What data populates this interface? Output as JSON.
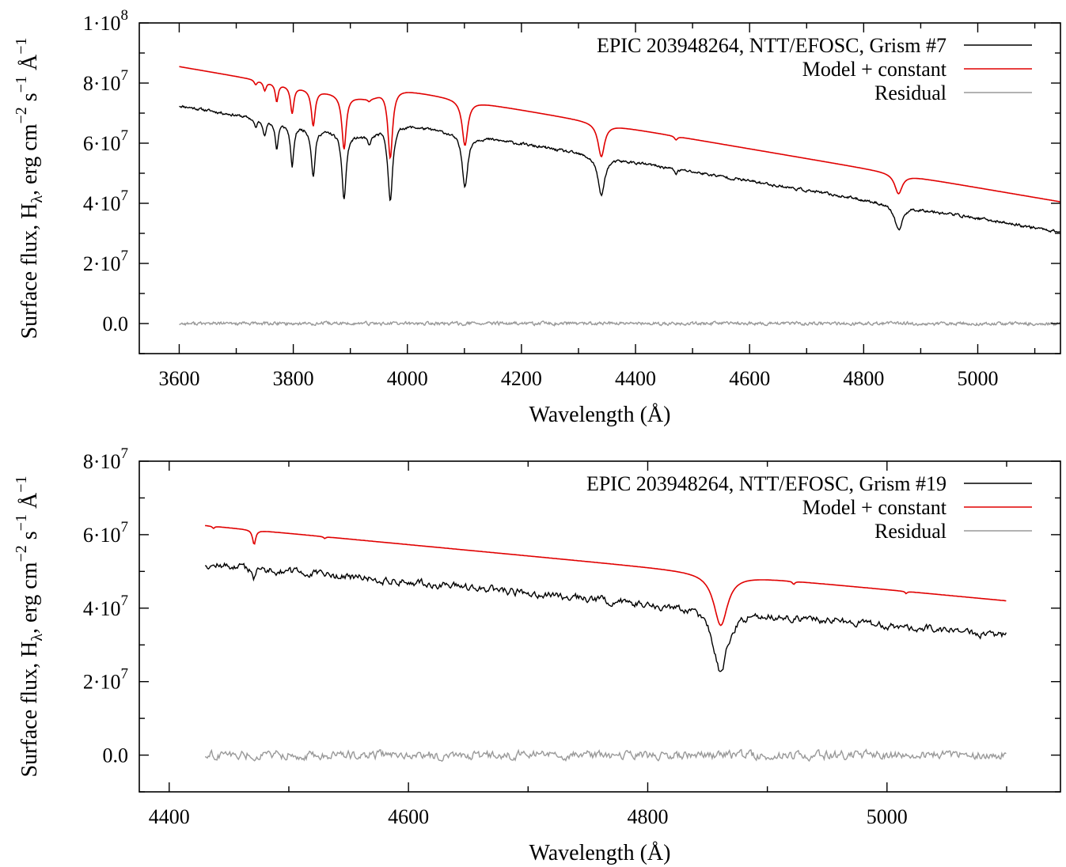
{
  "chart_data": [
    {
      "type": "line",
      "xlabel": "Wavelength (Å)",
      "ylabel": "Surface flux, Hλ, erg cm−2 s−1 Å−1",
      "xlim": [
        3530,
        5145
      ],
      "ylim": [
        -10000000,
        100000000
      ],
      "xticks": [
        3600,
        3800,
        4000,
        4200,
        4400,
        4600,
        4800,
        5000
      ],
      "xtick_labels": [
        "3600",
        "3800",
        "4000",
        "4200",
        "4400",
        "4600",
        "4800",
        "5000"
      ],
      "yticks": [
        0,
        20000000,
        40000000,
        60000000,
        80000000,
        100000000
      ],
      "ytick_labels": [
        {
          "mant": "0.0",
          "exp": ""
        },
        {
          "mant": "2·10",
          "exp": "7"
        },
        {
          "mant": "4·10",
          "exp": "7"
        },
        {
          "mant": "6·10",
          "exp": "7"
        },
        {
          "mant": "8·10",
          "exp": "7"
        },
        {
          "mant": "1·10",
          "exp": "8"
        }
      ],
      "grid": false,
      "legend_position": "top-right",
      "continuum": {
        "x": [
          3600,
          5145
        ],
        "obs": [
          78500000,
          30500000
        ],
        "model": [
          90500000,
          40500000
        ]
      },
      "lines": [
        {
          "x": 4861,
          "obs_depth": 8500000,
          "model_depth": 6500000,
          "width": 8
        },
        {
          "x": 4340,
          "obs_depth": 13000000,
          "model_depth": 11000000,
          "width": 7
        },
        {
          "x": 4101,
          "obs_depth": 17000000,
          "model_depth": 15000000,
          "width": 6
        },
        {
          "x": 3970,
          "obs_depth": 26000000,
          "model_depth": 23000000,
          "width": 5
        },
        {
          "x": 3889,
          "obs_depth": 22000000,
          "model_depth": 18000000,
          "width": 4.5
        },
        {
          "x": 3835,
          "obs_depth": 16000000,
          "model_depth": 12000000,
          "width": 4
        },
        {
          "x": 3798,
          "obs_depth": 14000000,
          "model_depth": 9000000,
          "width": 3.5
        },
        {
          "x": 3771,
          "obs_depth": 9000000,
          "model_depth": 6000000,
          "width": 3
        },
        {
          "x": 3750,
          "obs_depth": 5000000,
          "model_depth": 3000000,
          "width": 3
        },
        {
          "x": 3734,
          "obs_depth": 3000000,
          "model_depth": 1500000,
          "width": 3
        },
        {
          "x": 3933,
          "obs_depth": 3000000,
          "model_depth": 800000,
          "width": 3
        },
        {
          "x": 4471,
          "obs_depth": 1500000,
          "model_depth": 1200000,
          "width": 3
        }
      ],
      "jump": {
        "x": 3950,
        "obs": 6000000,
        "model": 5000000
      },
      "noise": {
        "obs": 900000,
        "residual": 900000
      },
      "series": [
        {
          "name": "EPIC 203948264, NTT/EFOSC, Grism #7",
          "color": "#000000"
        },
        {
          "name": "Model + constant",
          "color": "#e00000"
        },
        {
          "name": "Residual",
          "color": "#999999"
        }
      ]
    },
    {
      "type": "line",
      "xlabel": "Wavelength (Å)",
      "ylabel": "Surface flux, Hλ, erg cm−2 s−1 Å−1",
      "xlim": [
        4375,
        5145
      ],
      "ylim": [
        -10000000,
        80000000
      ],
      "xticks": [
        4400,
        4600,
        4800,
        5000
      ],
      "xtick_labels": [
        "4400",
        "4600",
        "4800",
        "5000"
      ],
      "yticks": [
        0,
        20000000,
        40000000,
        60000000,
        80000000
      ],
      "ytick_labels": [
        {
          "mant": "0.0",
          "exp": ""
        },
        {
          "mant": "2·10",
          "exp": "7"
        },
        {
          "mant": "4·10",
          "exp": "7"
        },
        {
          "mant": "6·10",
          "exp": "7"
        },
        {
          "mant": "8·10",
          "exp": "7"
        }
      ],
      "grid": false,
      "legend_position": "top-right",
      "continuum": {
        "x": [
          4430,
          5100
        ],
        "obs": [
          52000000,
          32500000
        ],
        "model": [
          62500000,
          42000000
        ]
      },
      "lines": [
        {
          "x": 4861,
          "obs_depth": 17000000,
          "model_depth": 14000000,
          "width": 7
        },
        {
          "x": 4471,
          "obs_depth": 2500000,
          "model_depth": 4000000,
          "width": 1.5
        },
        {
          "x": 4922,
          "obs_depth": 500000,
          "model_depth": 800000,
          "width": 1.2
        },
        {
          "x": 5016,
          "obs_depth": 300000,
          "model_depth": 600000,
          "width": 1
        },
        {
          "x": 4437,
          "obs_depth": 300000,
          "model_depth": 600000,
          "width": 1
        },
        {
          "x": 4530,
          "obs_depth": 300000,
          "model_depth": 500000,
          "width": 1
        }
      ],
      "noise": {
        "obs": 2000000,
        "residual": 2000000
      },
      "series": [
        {
          "name": "EPIC 203948264, NTT/EFOSC, Grism #19",
          "color": "#000000"
        },
        {
          "name": "Model + constant",
          "color": "#e00000"
        },
        {
          "name": "Residual",
          "color": "#999999"
        }
      ]
    }
  ]
}
